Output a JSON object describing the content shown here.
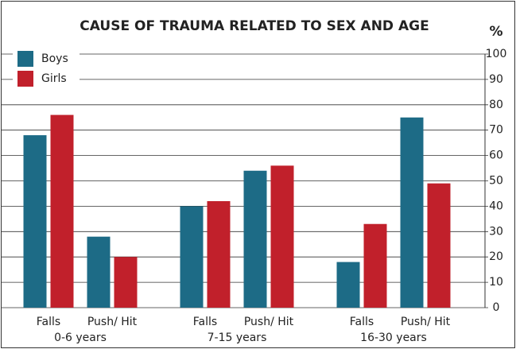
{
  "chart_data": {
    "type": "bar",
    "title": "CAUSE OF TRAUMA RELATED TO SEX AND AGE",
    "y_axis_label": "%",
    "categories": [
      "Falls",
      "Push/ Hit",
      "Falls",
      "Push/ Hit",
      "Falls",
      "Push/ Hit"
    ],
    "groups": [
      "0-6 years",
      "7-15 years",
      "16-30 years"
    ],
    "series": [
      {
        "name": "Boys",
        "color": "#1d6b86",
        "values": [
          68,
          28,
          40,
          54,
          18,
          75
        ]
      },
      {
        "name": "Girls",
        "color": "#c1202b",
        "values": [
          76,
          20,
          42,
          56,
          33,
          49
        ]
      }
    ],
    "ylim": [
      0,
      100
    ],
    "yticks": [
      0,
      10,
      20,
      30,
      40,
      50,
      60,
      70,
      80,
      90,
      100
    ],
    "grid": true,
    "legend": "top-left",
    "y_axis_side": "right"
  }
}
